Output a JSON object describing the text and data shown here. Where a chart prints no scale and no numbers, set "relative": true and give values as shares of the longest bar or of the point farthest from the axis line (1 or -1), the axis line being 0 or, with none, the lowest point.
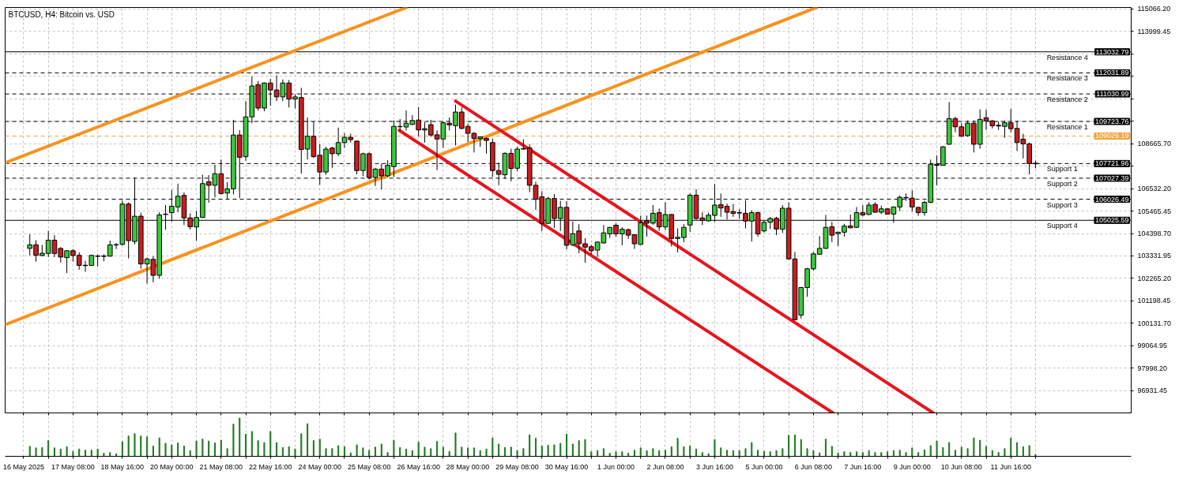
{
  "chart_data": [
    {
      "type": "candlestick",
      "title": "BTCUSD, H4: Bitcoin vs. USD",
      "tick_labels": "y",
      "x": [
        "2025-05-16T04:00",
        "2025-05-16T08:00",
        "2025-05-16T12:00",
        "2025-05-16T16:00",
        "2025-05-16T20:00",
        "2025-05-17T00:00",
        "2025-05-17T04:00",
        "2025-05-17T08:00",
        "2025-05-17T12:00",
        "2025-05-17T16:00",
        "2025-05-17T20:00",
        "2025-05-18T00:00",
        "2025-05-18T04:00",
        "2025-05-18T08:00",
        "2025-05-18T12:00",
        "2025-05-18T16:00",
        "2025-05-18T20:00",
        "2025-05-19T00:00",
        "2025-05-19T04:00",
        "2025-05-19T08:00",
        "2025-05-19T12:00",
        "2025-05-19T16:00",
        "2025-05-19T20:00",
        "2025-05-20T00:00",
        "2025-05-20T04:00",
        "2025-05-20T08:00",
        "2025-05-20T12:00",
        "2025-05-20T16:00",
        "2025-05-20T20:00",
        "2025-05-21T00:00",
        "2025-05-21T04:00",
        "2025-05-21T08:00",
        "2025-05-21T12:00",
        "2025-05-21T16:00",
        "2025-05-21T20:00",
        "2025-05-22T00:00",
        "2025-05-22T04:00",
        "2025-05-22T08:00",
        "2025-05-22T12:00",
        "2025-05-22T16:00",
        "2025-05-22T20:00",
        "2025-05-23T00:00",
        "2025-05-23T04:00",
        "2025-05-23T08:00",
        "2025-05-23T12:00",
        "2025-05-23T16:00",
        "2025-05-23T20:00",
        "2025-05-24T00:00",
        "2025-05-24T04:00",
        "2025-05-24T08:00",
        "2025-05-24T12:00",
        "2025-05-24T16:00",
        "2025-05-24T20:00",
        "2025-05-25T00:00",
        "2025-05-25T04:00",
        "2025-05-25T08:00",
        "2025-05-25T12:00",
        "2025-05-25T16:00",
        "2025-05-25T20:00",
        "2025-05-26T00:00",
        "2025-05-26T04:00",
        "2025-05-26T08:00",
        "2025-05-26T12:00",
        "2025-05-26T16:00",
        "2025-05-26T20:00",
        "2025-05-27T00:00",
        "2025-05-27T04:00",
        "2025-05-27T08:00",
        "2025-05-27T12:00",
        "2025-05-27T16:00",
        "2025-05-27T20:00",
        "2025-05-28T00:00",
        "2025-05-28T04:00",
        "2025-05-28T08:00",
        "2025-05-28T12:00",
        "2025-05-28T16:00",
        "2025-05-28T20:00",
        "2025-05-29T00:00",
        "2025-05-29T04:00",
        "2025-05-29T08:00",
        "2025-05-29T12:00",
        "2025-05-29T16:00",
        "2025-05-29T20:00",
        "2025-05-30T00:00",
        "2025-05-30T04:00",
        "2025-05-30T08:00",
        "2025-05-30T12:00",
        "2025-05-30T16:00",
        "2025-05-30T20:00",
        "2025-05-31T00:00",
        "2025-05-31T04:00",
        "2025-05-31T08:00",
        "2025-05-31T12:00",
        "2025-05-31T16:00",
        "2025-05-31T20:00",
        "2025-06-01T00:00",
        "2025-06-01T04:00",
        "2025-06-01T08:00",
        "2025-06-01T12:00",
        "2025-06-01T16:00",
        "2025-06-01T20:00",
        "2025-06-02T00:00",
        "2025-06-02T04:00",
        "2025-06-02T08:00",
        "2025-06-02T12:00",
        "2025-06-02T16:00",
        "2025-06-02T20:00",
        "2025-06-03T00:00",
        "2025-06-03T04:00",
        "2025-06-03T08:00",
        "2025-06-03T12:00",
        "2025-06-03T16:00",
        "2025-06-03T20:00",
        "2025-06-04T00:00",
        "2025-06-04T04:00",
        "2025-06-04T08:00",
        "2025-06-04T12:00",
        "2025-06-04T16:00",
        "2025-06-04T20:00",
        "2025-06-05T00:00",
        "2025-06-05T04:00",
        "2025-06-05T08:00",
        "2025-06-05T12:00",
        "2025-06-05T16:00",
        "2025-06-05T20:00",
        "2025-06-06T00:00",
        "2025-06-06T04:00",
        "2025-06-06T08:00",
        "2025-06-06T12:00",
        "2025-06-06T16:00",
        "2025-06-06T20:00",
        "2025-06-07T00:00",
        "2025-06-07T04:00",
        "2025-06-07T08:00",
        "2025-06-07T12:00",
        "2025-06-07T16:00",
        "2025-06-07T20:00",
        "2025-06-08T00:00",
        "2025-06-08T04:00",
        "2025-06-08T08:00",
        "2025-06-08T12:00",
        "2025-06-08T16:00",
        "2025-06-08T20:00",
        "2025-06-09T00:00",
        "2025-06-09T04:00",
        "2025-06-09T08:00",
        "2025-06-09T12:00",
        "2025-06-09T16:00",
        "2025-06-09T20:00",
        "2025-06-10T00:00",
        "2025-06-10T04:00",
        "2025-06-10T08:00",
        "2025-06-10T12:00",
        "2025-06-10T16:00",
        "2025-06-10T20:00",
        "2025-06-11T00:00",
        "2025-06-11T04:00",
        "2025-06-11T08:00",
        "2025-06-11T12:00",
        "2025-06-11T16:00",
        "2025-06-11T20:00",
        "2025-06-12T00:00",
        "2025-06-12T04:00",
        "2025-06-12T08:00"
      ],
      "ohlc": [
        [
          103690,
          104360,
          103360,
          103860
        ],
        [
          103860,
          104080,
          103060,
          103360
        ],
        [
          103350,
          103860,
          103320,
          103460
        ],
        [
          103450,
          104520,
          103280,
          104080
        ],
        [
          104080,
          104320,
          103280,
          103450
        ],
        [
          103690,
          103750,
          103020,
          103280
        ],
        [
          103250,
          103610,
          102520,
          103580
        ],
        [
          103580,
          103660,
          103060,
          103350
        ],
        [
          103360,
          103500,
          102680,
          102880
        ],
        [
          102890,
          103100,
          102580,
          102870
        ],
        [
          102880,
          103380,
          102860,
          103360
        ],
        [
          103310,
          103410,
          102830,
          103330
        ],
        [
          103330,
          103410,
          103080,
          103310
        ],
        [
          103320,
          104060,
          103300,
          103860
        ],
        [
          103850,
          103950,
          103660,
          103870
        ],
        [
          103880,
          105970,
          103840,
          105800
        ],
        [
          105800,
          105880,
          103210,
          104060
        ],
        [
          104020,
          107060,
          103880,
          105220
        ],
        [
          105220,
          105390,
          102720,
          102950
        ],
        [
          102950,
          103250,
          102020,
          103190
        ],
        [
          103170,
          103320,
          102080,
          102410
        ],
        [
          102410,
          105410,
          102250,
          105280
        ],
        [
          105300,
          105750,
          104580,
          105320
        ],
        [
          105390,
          106470,
          104970,
          105690
        ],
        [
          105660,
          106770,
          105410,
          106170
        ],
        [
          106210,
          106360,
          104800,
          105140
        ],
        [
          105140,
          105360,
          104580,
          104720
        ],
        [
          104710,
          105470,
          104060,
          105160
        ],
        [
          105160,
          107190,
          105140,
          106770
        ],
        [
          106860,
          107170,
          105860,
          106690
        ],
        [
          106690,
          107660,
          106110,
          107240
        ],
        [
          107240,
          107910,
          106250,
          106300
        ],
        [
          106320,
          106840,
          106020,
          106520
        ],
        [
          106520,
          109800,
          106250,
          109080
        ],
        [
          109080,
          109320,
          106080,
          108020
        ],
        [
          108050,
          110690,
          107860,
          109940
        ],
        [
          109940,
          111860,
          109640,
          111410
        ],
        [
          111470,
          111640,
          110250,
          110360
        ],
        [
          110360,
          111580,
          110210,
          111550
        ],
        [
          111550,
          111750,
          110470,
          111220
        ],
        [
          111220,
          111910,
          110690,
          110890
        ],
        [
          110890,
          111720,
          110690,
          111550
        ],
        [
          111550,
          111690,
          110390,
          110790
        ],
        [
          110790,
          111020,
          110350,
          110890
        ],
        [
          110860,
          111320,
          107250,
          108390
        ],
        [
          108410,
          109910,
          107910,
          109020
        ],
        [
          109020,
          109720,
          107990,
          108050
        ],
        [
          108120,
          108640,
          106710,
          107320
        ],
        [
          107320,
          108520,
          107190,
          108410
        ],
        [
          108460,
          108520,
          107520,
          108190
        ],
        [
          108190,
          109430,
          108080,
          108720
        ],
        [
          108720,
          109170,
          108470,
          108970
        ],
        [
          108970,
          109140,
          108720,
          108860
        ],
        [
          108790,
          108820,
          107210,
          107390
        ],
        [
          107390,
          108240,
          107120,
          108190
        ],
        [
          108190,
          108250,
          106970,
          107060
        ],
        [
          107060,
          107520,
          106660,
          107460
        ],
        [
          107460,
          107720,
          106490,
          107140
        ],
        [
          107140,
          107880,
          107060,
          107640
        ],
        [
          107580,
          109770,
          107080,
          109490
        ],
        [
          109470,
          109840,
          109280,
          109490
        ],
        [
          109460,
          110250,
          109300,
          109640
        ],
        [
          109580,
          110020,
          109550,
          109770
        ],
        [
          109790,
          110410,
          109020,
          109320
        ],
        [
          109320,
          109690,
          108720,
          109380
        ],
        [
          109570,
          109800,
          108990,
          109080
        ],
        [
          109090,
          109300,
          107410,
          108890
        ],
        [
          108890,
          109720,
          108470,
          109660
        ],
        [
          109640,
          109910,
          109300,
          109560
        ],
        [
          109520,
          110520,
          108580,
          110170
        ],
        [
          110170,
          110390,
          109360,
          109390
        ],
        [
          109490,
          109610,
          108750,
          109160
        ],
        [
          109160,
          109210,
          108250,
          108910
        ],
        [
          108910,
          109020,
          108520,
          108990
        ],
        [
          108910,
          108970,
          108190,
          108820
        ],
        [
          108720,
          108910,
          107080,
          107390
        ],
        [
          107390,
          107770,
          106690,
          107210
        ],
        [
          107190,
          108250,
          107000,
          108210
        ],
        [
          108210,
          108430,
          106880,
          107490
        ],
        [
          107500,
          108520,
          107360,
          108410
        ],
        [
          108410,
          108880,
          108390,
          108430
        ],
        [
          108470,
          108640,
          106360,
          106690
        ],
        [
          106690,
          106860,
          105520,
          106020
        ],
        [
          106140,
          106410,
          104520,
          104880
        ],
        [
          104880,
          106140,
          104860,
          106060
        ],
        [
          106060,
          106270,
          104660,
          105110
        ],
        [
          105110,
          105950,
          104520,
          105640
        ],
        [
          105640,
          105940,
          103640,
          103840
        ],
        [
          103860,
          104970,
          103800,
          104390
        ],
        [
          104520,
          104840,
          103470,
          103910
        ],
        [
          103910,
          104170,
          103010,
          103750
        ],
        [
          103770,
          103860,
          103410,
          103580
        ],
        [
          103610,
          104020,
          103280,
          103990
        ],
        [
          103950,
          104800,
          103910,
          104430
        ],
        [
          104380,
          104700,
          104190,
          104690
        ],
        [
          104790,
          104880,
          104250,
          104380
        ],
        [
          104380,
          104700,
          103840,
          104600
        ],
        [
          104580,
          104640,
          104140,
          104320
        ],
        [
          104340,
          104350,
          103670,
          103910
        ],
        [
          103880,
          105250,
          103860,
          104910
        ],
        [
          105000,
          105250,
          104250,
          104890
        ],
        [
          104890,
          105750,
          104810,
          105360
        ],
        [
          105390,
          105580,
          104520,
          104710
        ],
        [
          104710,
          105890,
          104560,
          105300
        ],
        [
          105300,
          105320,
          103780,
          104160
        ],
        [
          104160,
          104640,
          103500,
          104220
        ],
        [
          104210,
          104840,
          103990,
          104690
        ],
        [
          104800,
          106300,
          104470,
          106220
        ],
        [
          106220,
          106500,
          105060,
          105110
        ],
        [
          105140,
          105410,
          104800,
          105020
        ],
        [
          105000,
          105390,
          104970,
          105270
        ],
        [
          105260,
          106750,
          104950,
          105750
        ],
        [
          105770,
          106300,
          105190,
          105610
        ],
        [
          105690,
          105820,
          105060,
          105410
        ],
        [
          105440,
          105800,
          105190,
          105350
        ],
        [
          105390,
          105550,
          105100,
          105370
        ],
        [
          105360,
          105970,
          104640,
          104990
        ],
        [
          104990,
          105500,
          104020,
          105390
        ],
        [
          105390,
          105440,
          104250,
          104380
        ],
        [
          104520,
          105020,
          104450,
          104930
        ],
        [
          104930,
          105190,
          104610,
          105110
        ],
        [
          105120,
          105190,
          104320,
          104610
        ],
        [
          104600,
          105750,
          104430,
          105600
        ],
        [
          105600,
          105880,
          103170,
          103190
        ],
        [
          103190,
          103520,
          100280,
          100300
        ],
        [
          100520,
          101860,
          100360,
          101830
        ],
        [
          101830,
          102770,
          101390,
          102720
        ],
        [
          102720,
          103520,
          102640,
          103430
        ],
        [
          103410,
          104280,
          103410,
          103690
        ],
        [
          103690,
          105280,
          103660,
          104690
        ],
        [
          104720,
          104950,
          103990,
          104320
        ],
        [
          104390,
          104470,
          103800,
          104460
        ],
        [
          104460,
          104860,
          104250,
          104750
        ],
        [
          104760,
          105300,
          104640,
          104670
        ],
        [
          104690,
          105660,
          104660,
          105390
        ],
        [
          105390,
          105750,
          105210,
          105280
        ],
        [
          105300,
          105880,
          105280,
          105750
        ],
        [
          105780,
          105880,
          105390,
          105410
        ],
        [
          105410,
          105720,
          105320,
          105570
        ],
        [
          105570,
          105580,
          105300,
          105320
        ],
        [
          105320,
          105680,
          104910,
          105660
        ],
        [
          105660,
          106210,
          105470,
          106120
        ],
        [
          106090,
          106300,
          105950,
          106110
        ],
        [
          106080,
          106450,
          105440,
          105660
        ],
        [
          105640,
          105660,
          105240,
          105390
        ],
        [
          105390,
          105950,
          105240,
          105880
        ],
        [
          105880,
          107910,
          105840,
          107690
        ],
        [
          107690,
          108100,
          106690,
          107640
        ],
        [
          107640,
          108550,
          107640,
          108520
        ],
        [
          108640,
          110640,
          108610,
          109860
        ],
        [
          109860,
          109950,
          109210,
          109470
        ],
        [
          109470,
          109640,
          109010,
          109020
        ],
        [
          109050,
          109770,
          108990,
          109640
        ],
        [
          109640,
          109770,
          108250,
          108640
        ],
        [
          108640,
          110300,
          108430,
          109820
        ],
        [
          109900,
          110280,
          109320,
          109750
        ],
        [
          109750,
          109800,
          109390,
          109520
        ],
        [
          109540,
          109720,
          109320,
          109510
        ],
        [
          109490,
          109770,
          108950,
          109660
        ],
        [
          109660,
          110320,
          109210,
          109380
        ],
        [
          109390,
          109750,
          108320,
          108720
        ],
        [
          108880,
          109140,
          107970,
          108660
        ],
        [
          108660,
          108720,
          107210,
          107720
        ],
        [
          107740,
          107860,
          107500,
          107710
        ]
      ],
      "colors": [
        "#3cc83c",
        "#c81e1e",
        "#3cc83c",
        "#3cc83c",
        "#c81e1e",
        "#c81e1e",
        "#3cc83c",
        "#c81e1e",
        "#c81e1e",
        "#c81e1e",
        "#3cc83c",
        "#3cc83c",
        "#c81e1e",
        "#3cc83c",
        "#3cc83c",
        "#3cc83c",
        "#c81e1e",
        "#3cc83c",
        "#c81e1e",
        "#3cc83c",
        "#c81e1e",
        "#3cc83c",
        "#3cc83c",
        "#3cc83c",
        "#3cc83c",
        "#c81e1e",
        "#c81e1e",
        "#3cc83c",
        "#3cc83c",
        "#c81e1e",
        "#3cc83c",
        "#c81e1e",
        "#3cc83c",
        "#3cc83c",
        "#c81e1e",
        "#3cc83c",
        "#3cc83c",
        "#c81e1e",
        "#3cc83c",
        "#c81e1e",
        "#c81e1e",
        "#3cc83c",
        "#c81e1e",
        "#3cc83c",
        "#c81e1e",
        "#3cc83c",
        "#c81e1e",
        "#c81e1e",
        "#3cc83c",
        "#c81e1e",
        "#3cc83c",
        "#3cc83c",
        "#c81e1e",
        "#c81e1e",
        "#3cc83c",
        "#c81e1e",
        "#3cc83c",
        "#c81e1e",
        "#3cc83c",
        "#3cc83c",
        "#3cc83c",
        "#3cc83c",
        "#3cc83c",
        "#c81e1e",
        "#3cc83c",
        "#c81e1e",
        "#c81e1e",
        "#3cc83c",
        "#c81e1e",
        "#3cc83c",
        "#c81e1e",
        "#c81e1e",
        "#c81e1e",
        "#3cc83c",
        "#c81e1e",
        "#c81e1e",
        "#c81e1e",
        "#3cc83c",
        "#c81e1e",
        "#3cc83c",
        "#3cc83c",
        "#c81e1e",
        "#c81e1e",
        "#c81e1e",
        "#3cc83c",
        "#c81e1e",
        "#3cc83c",
        "#c81e1e",
        "#3cc83c",
        "#c81e1e",
        "#c81e1e",
        "#c81e1e",
        "#3cc83c",
        "#3cc83c",
        "#3cc83c",
        "#c81e1e",
        "#3cc83c",
        "#c81e1e",
        "#c81e1e",
        "#3cc83c",
        "#c81e1e",
        "#3cc83c",
        "#c81e1e",
        "#3cc83c",
        "#c81e1e",
        "#3cc83c",
        "#3cc83c",
        "#3cc83c",
        "#c81e1e",
        "#c81e1e",
        "#3cc83c",
        "#3cc83c",
        "#c81e1e",
        "#c81e1e",
        "#c81e1e",
        "#c81e1e",
        "#c81e1e",
        "#3cc83c",
        "#c81e1e",
        "#3cc83c",
        "#3cc83c",
        "#c81e1e",
        "#3cc83c",
        "#c81e1e",
        "#c81e1e",
        "#3cc83c",
        "#3cc83c",
        "#3cc83c",
        "#3cc83c",
        "#3cc83c",
        "#c81e1e",
        "#3cc83c",
        "#3cc83c",
        "#c81e1e",
        "#3cc83c",
        "#c81e1e",
        "#3cc83c",
        "#c81e1e",
        "#3cc83c",
        "#c81e1e",
        "#3cc83c",
        "#3cc83c",
        "#3cc83c",
        "#c81e1e",
        "#c81e1e",
        "#3cc83c",
        "#3cc83c",
        "#c81e1e",
        "#3cc83c",
        "#3cc83c",
        "#c81e1e",
        "#c81e1e",
        "#3cc83c",
        "#c81e1e",
        "#3cc83c",
        "#c81e1e",
        "#c81e1e",
        "#c81e1e",
        "#3cc83c",
        "#c81e1e",
        "#c81e1e",
        "#c81e1e",
        "#c81e1e",
        "#c81e1e"
      ],
      "series": [
        {
          "type": "line",
          "x": [
            "2025-05-15T12:00",
            "2025-05-26T08:10"
          ],
          "values": [
            107760,
            115140
          ],
          "color": "#f7931e"
        },
        {
          "type": "line",
          "x": [
            "2025-05-15T12:00",
            "2025-06-06T10:00"
          ],
          "values": [
            100060,
            115140
          ],
          "color": "#f7931e"
        },
        {
          "type": "line",
          "x": [
            "2025-05-27T16:00",
            "2025-06-09T13:40"
          ],
          "values": [
            110690,
            95870
          ],
          "color": "#e8141e"
        },
        {
          "type": "line",
          "x": [
            "2025-05-26T03:30",
            "2025-06-06T20:40"
          ],
          "values": [
            109300,
            95870
          ],
          "color": "#e8141e"
        }
      ],
      "xlim": [
        "2025-05-15T12:00",
        "2025-06-14T22:00"
      ],
      "ylim": [
        95870,
        115140
      ],
      "yticks": [
        {
          "value": 115066.2,
          "label": "115066.20"
        },
        113999.45,
        {
          "value": 112932.7,
          "label": null
        },
        {
          "value": 111865.95,
          "label": null
        },
        {
          "value": 110799.2,
          "label": null
        },
        {
          "value": 109732.45,
          "label": null
        },
        {
          "value": 108665.7,
          "label": "108665.70"
        },
        {
          "value": 107598.95,
          "label": null
        },
        {
          "value": 106532.2,
          "label": "106532.20"
        },
        105465.45,
        {
          "value": 104398.7,
          "label": "104398.70"
        },
        103331.95,
        {
          "value": 102265.2,
          "label": "102265.20"
        },
        101198.45,
        {
          "value": 100131.7,
          "label": "100131.70"
        },
        99064.95,
        {
          "value": 97998.2,
          "label": "97998.20"
        },
        96931.45
      ],
      "ref_lines": [
        {
          "axis": "y",
          "value": 113032.79,
          "label": "Resistance 4",
          "color": "#000000",
          "line_style": "solid"
        },
        {
          "axis": "y",
          "value": 112031.89,
          "label": "Resistance 3",
          "color": "#000000",
          "line_style": "dashed"
        },
        {
          "axis": "y",
          "value": 111030.99,
          "label": "Resistance 2",
          "color": "#000000",
          "line_style": "dashed"
        },
        {
          "axis": "y",
          "value": 109723.76,
          "label": "Resistance 1",
          "color": "#000000",
          "line_style": "dashed"
        },
        {
          "axis": "y",
          "value": 109029.19,
          "color": "#f2a33a",
          "line_style": "dashed"
        },
        {
          "axis": "y",
          "value": 107721.96,
          "label": "Support 1",
          "color": "#000000",
          "line_style": "dashed"
        },
        {
          "axis": "y",
          "value": 107027.39,
          "label": "Support 2",
          "color": "#000000",
          "line_style": "dashed"
        },
        {
          "axis": "y",
          "value": 106026.49,
          "label": "Support 3",
          "color": "#000000",
          "line_style": "dashed"
        },
        {
          "axis": "y",
          "value": 105025.59,
          "label": "Support 4",
          "color": "#000000",
          "line_style": "solid"
        }
      ],
      "annotations": [
        {
          "text": "113032.79",
          "y": 113032.79
        },
        {
          "text": "112031.89",
          "y": 112031.89
        },
        {
          "text": "111030.99",
          "y": 111030.99
        },
        {
          "text": "109723.76",
          "y": 109723.76
        },
        {
          "text": "109029.19",
          "y": 109029.19
        },
        {
          "text": "107721.96",
          "y": 107721.96
        },
        {
          "text": "107027.39",
          "y": 107027.39
        },
        {
          "text": "106026.49",
          "y": 106026.49
        },
        {
          "text": "105025.59",
          "y": 105025.59
        }
      ],
      "grid": true
    },
    {
      "type": "bar",
      "relative": true,
      "grid": "x",
      "color": "#1f7a1f",
      "x": [
        "2025-05-16T04:00",
        "2025-05-16T08:00",
        "2025-05-16T12:00",
        "2025-05-16T16:00",
        "2025-05-16T20:00",
        "2025-05-17T00:00",
        "2025-05-17T04:00",
        "2025-05-17T08:00",
        "2025-05-17T12:00",
        "2025-05-17T16:00",
        "2025-05-17T20:00",
        "2025-05-18T00:00",
        "2025-05-18T04:00",
        "2025-05-18T08:00",
        "2025-05-18T12:00",
        "2025-05-18T16:00",
        "2025-05-18T20:00",
        "2025-05-19T00:00",
        "2025-05-19T04:00",
        "2025-05-19T08:00",
        "2025-05-19T12:00",
        "2025-05-19T16:00",
        "2025-05-19T20:00",
        "2025-05-20T00:00",
        "2025-05-20T04:00",
        "2025-05-20T08:00",
        "2025-05-20T12:00",
        "2025-05-20T16:00",
        "2025-05-20T20:00",
        "2025-05-21T00:00",
        "2025-05-21T04:00",
        "2025-05-21T08:00",
        "2025-05-21T12:00",
        "2025-05-21T16:00",
        "2025-05-21T20:00",
        "2025-05-22T00:00",
        "2025-05-22T04:00",
        "2025-05-22T08:00",
        "2025-05-22T12:00",
        "2025-05-22T16:00",
        "2025-05-22T20:00",
        "2025-05-23T00:00",
        "2025-05-23T04:00",
        "2025-05-23T08:00",
        "2025-05-23T12:00",
        "2025-05-23T16:00",
        "2025-05-23T20:00",
        "2025-05-24T00:00",
        "2025-05-24T04:00",
        "2025-05-24T08:00",
        "2025-05-24T12:00",
        "2025-05-24T16:00",
        "2025-05-24T20:00",
        "2025-05-25T00:00",
        "2025-05-25T04:00",
        "2025-05-25T08:00",
        "2025-05-25T12:00",
        "2025-05-25T16:00",
        "2025-05-25T20:00",
        "2025-05-26T00:00",
        "2025-05-26T04:00",
        "2025-05-26T08:00",
        "2025-05-26T12:00",
        "2025-05-26T16:00",
        "2025-05-26T20:00",
        "2025-05-27T00:00",
        "2025-05-27T04:00",
        "2025-05-27T08:00",
        "2025-05-27T12:00",
        "2025-05-27T16:00",
        "2025-05-27T20:00",
        "2025-05-28T00:00",
        "2025-05-28T04:00",
        "2025-05-28T08:00",
        "2025-05-28T12:00",
        "2025-05-28T16:00",
        "2025-05-28T20:00",
        "2025-05-29T00:00",
        "2025-05-29T04:00",
        "2025-05-29T08:00",
        "2025-05-29T12:00",
        "2025-05-29T16:00",
        "2025-05-29T20:00",
        "2025-05-30T00:00",
        "2025-05-30T04:00",
        "2025-05-30T08:00",
        "2025-05-30T12:00",
        "2025-05-30T16:00",
        "2025-05-30T20:00",
        "2025-05-31T00:00",
        "2025-05-31T04:00",
        "2025-05-31T08:00",
        "2025-05-31T12:00",
        "2025-05-31T16:00",
        "2025-05-31T20:00",
        "2025-06-01T00:00",
        "2025-06-01T04:00",
        "2025-06-01T08:00",
        "2025-06-01T12:00",
        "2025-06-01T16:00",
        "2025-06-01T20:00",
        "2025-06-02T00:00",
        "2025-06-02T04:00",
        "2025-06-02T08:00",
        "2025-06-02T12:00",
        "2025-06-02T16:00",
        "2025-06-02T20:00",
        "2025-06-03T00:00",
        "2025-06-03T04:00",
        "2025-06-03T08:00",
        "2025-06-03T12:00",
        "2025-06-03T16:00",
        "2025-06-03T20:00",
        "2025-06-04T00:00",
        "2025-06-04T04:00",
        "2025-06-04T08:00",
        "2025-06-04T12:00",
        "2025-06-04T16:00",
        "2025-06-04T20:00",
        "2025-06-05T00:00",
        "2025-06-05T04:00",
        "2025-06-05T08:00",
        "2025-06-05T12:00",
        "2025-06-05T16:00",
        "2025-06-05T20:00",
        "2025-06-06T00:00",
        "2025-06-06T04:00",
        "2025-06-06T08:00",
        "2025-06-06T12:00",
        "2025-06-06T16:00",
        "2025-06-06T20:00",
        "2025-06-07T00:00",
        "2025-06-07T04:00",
        "2025-06-07T08:00",
        "2025-06-07T12:00",
        "2025-06-07T16:00",
        "2025-06-07T20:00",
        "2025-06-08T00:00",
        "2025-06-08T04:00",
        "2025-06-08T08:00",
        "2025-06-08T12:00",
        "2025-06-08T16:00",
        "2025-06-08T20:00",
        "2025-06-09T00:00",
        "2025-06-09T04:00",
        "2025-06-09T08:00",
        "2025-06-09T12:00",
        "2025-06-09T16:00",
        "2025-06-09T20:00",
        "2025-06-10T00:00",
        "2025-06-10T04:00",
        "2025-06-10T08:00",
        "2025-06-10T12:00",
        "2025-06-10T16:00",
        "2025-06-10T20:00",
        "2025-06-11T00:00",
        "2025-06-11T04:00",
        "2025-06-11T08:00",
        "2025-06-11T12:00",
        "2025-06-11T16:00",
        "2025-06-11T20:00",
        "2025-06-12T00:00",
        "2025-06-12T04:00",
        "2025-06-12T08:00"
      ],
      "xlim": [
        "2025-05-15T12:00",
        "2025-06-14T22:00"
      ],
      "xticks": [
        {
          "value": "2025-05-16T00:00",
          "label": "16 May 2025"
        },
        {
          "value": "2025-05-16T16:00",
          "label": null
        },
        {
          "value": "2025-05-17T08:00",
          "label": "17 May 08:00"
        },
        {
          "value": "2025-05-18T00:00",
          "label": null
        },
        {
          "value": "2025-05-18T16:00",
          "label": "18 May 16:00"
        },
        {
          "value": "2025-05-19T08:00",
          "label": null
        },
        {
          "value": "2025-05-20T00:00",
          "label": "20 May 00:00"
        },
        {
          "value": "2025-05-20T16:00",
          "label": null
        },
        {
          "value": "2025-05-21T08:00",
          "label": "21 May 08:00"
        },
        {
          "value": "2025-05-22T00:00",
          "label": null
        },
        {
          "value": "2025-05-22T16:00",
          "label": "22 May 16:00"
        },
        {
          "value": "2025-05-23T08:00",
          "label": null
        },
        {
          "value": "2025-05-24T00:00",
          "label": "24 May 00:00"
        },
        {
          "value": "2025-05-24T16:00",
          "label": null
        },
        {
          "value": "2025-05-25T08:00",
          "label": "25 May 08:00"
        },
        {
          "value": "2025-05-26T00:00",
          "label": null
        },
        {
          "value": "2025-05-26T16:00",
          "label": "26 May 16:00"
        },
        {
          "value": "2025-05-27T08:00",
          "label": null
        },
        {
          "value": "2025-05-28T00:00",
          "label": "28 May 00:00"
        },
        {
          "value": "2025-05-28T16:00",
          "label": null
        },
        {
          "value": "2025-05-29T08:00",
          "label": "29 May 08:00"
        },
        {
          "value": "2025-05-30T00:00",
          "label": null
        },
        {
          "value": "2025-05-30T16:00",
          "label": "30 May 16:00"
        },
        {
          "value": "2025-05-31T08:00",
          "label": null
        },
        {
          "value": "2025-06-01T00:00",
          "label": "1 Jun 00:00"
        },
        {
          "value": "2025-06-01T16:00",
          "label": null
        },
        {
          "value": "2025-06-02T08:00",
          "label": "2 Jun 08:00"
        },
        {
          "value": "2025-06-03T00:00",
          "label": null
        },
        {
          "value": "2025-06-03T16:00",
          "label": "3 Jun 16:00"
        },
        {
          "value": "2025-06-04T08:00",
          "label": null
        },
        {
          "value": "2025-06-05T00:00",
          "label": "5 Jun 00:00"
        },
        {
          "value": "2025-06-05T16:00",
          "label": null
        },
        {
          "value": "2025-06-06T08:00",
          "label": "6 Jun 08:00"
        },
        {
          "value": "2025-06-07T00:00",
          "label": null
        },
        {
          "value": "2025-06-07T16:00",
          "label": "7 Jun 16:00"
        },
        {
          "value": "2025-06-08T08:00",
          "label": null
        },
        {
          "value": "2025-06-09T00:00",
          "label": "9 Jun 00:00"
        },
        {
          "value": "2025-06-09T16:00",
          "label": null
        },
        {
          "value": "2025-06-10T08:00",
          "label": "10 Jun 08:00"
        },
        {
          "value": "2025-06-11T00:00",
          "label": null
        },
        {
          "value": "2025-06-11T16:00",
          "label": "11 Jun 16:00"
        },
        {
          "value": "2025-06-12T08:00",
          "label": null
        }
      ],
      "values": [
        0.26,
        0.22,
        0.23,
        0.41,
        0.22,
        0.19,
        0.25,
        0.13,
        0.19,
        0.16,
        0.16,
        0.19,
        0.08,
        0.1,
        0.07,
        0.38,
        0.53,
        0.59,
        0.53,
        0.51,
        0.27,
        0.48,
        0.34,
        0.3,
        0.35,
        0.27,
        0.15,
        0.4,
        0.45,
        0.4,
        0.35,
        0.42,
        0.2,
        0.84,
        1,
        0.58,
        0.65,
        0.41,
        0.36,
        0.65,
        0.36,
        0.23,
        0.25,
        0.19,
        0.59,
        0.85,
        0.41,
        0.45,
        0.2,
        0.2,
        0.28,
        0.25,
        0.09,
        0.3,
        0.22,
        0.16,
        0.24,
        0.32,
        0.1,
        0.42,
        0.23,
        0.19,
        0.15,
        0.37,
        0.24,
        0.2,
        0.39,
        0.24,
        0.13,
        0.61,
        0.24,
        0.22,
        0.22,
        0.15,
        0.19,
        0.48,
        0.32,
        0.23,
        0.24,
        0.15,
        0.2,
        0.56,
        0.47,
        0.27,
        0.29,
        0.3,
        0.34,
        0.58,
        0.32,
        0.41,
        0.44,
        0.12,
        0.15,
        0.2,
        0.08,
        0.12,
        0.12,
        0.08,
        0.16,
        0.22,
        0.15,
        0.2,
        0.15,
        0.16,
        0.25,
        0.47,
        0.25,
        0.27,
        0.19,
        0.1,
        0.07,
        0.44,
        0.22,
        0.16,
        0.15,
        0.15,
        0.2,
        0.36,
        0.16,
        0.13,
        0.12,
        0.15,
        0.2,
        0.55,
        0.56,
        0.44,
        0.2,
        0.15,
        0.09,
        0.45,
        0.26,
        0.09,
        0.12,
        0.1,
        0.12,
        0.1,
        0.15,
        0.1,
        0.1,
        0.12,
        0.15,
        0.16,
        0.1,
        0.22,
        0.1,
        0.17,
        0.28,
        0.4,
        0.23,
        0.36,
        0.16,
        0.24,
        0.2,
        0.48,
        0.42,
        0.26,
        0.15,
        0.1,
        0.2,
        0.48,
        0.36,
        0.25,
        0.28,
        0.05
      ]
    }
  ]
}
